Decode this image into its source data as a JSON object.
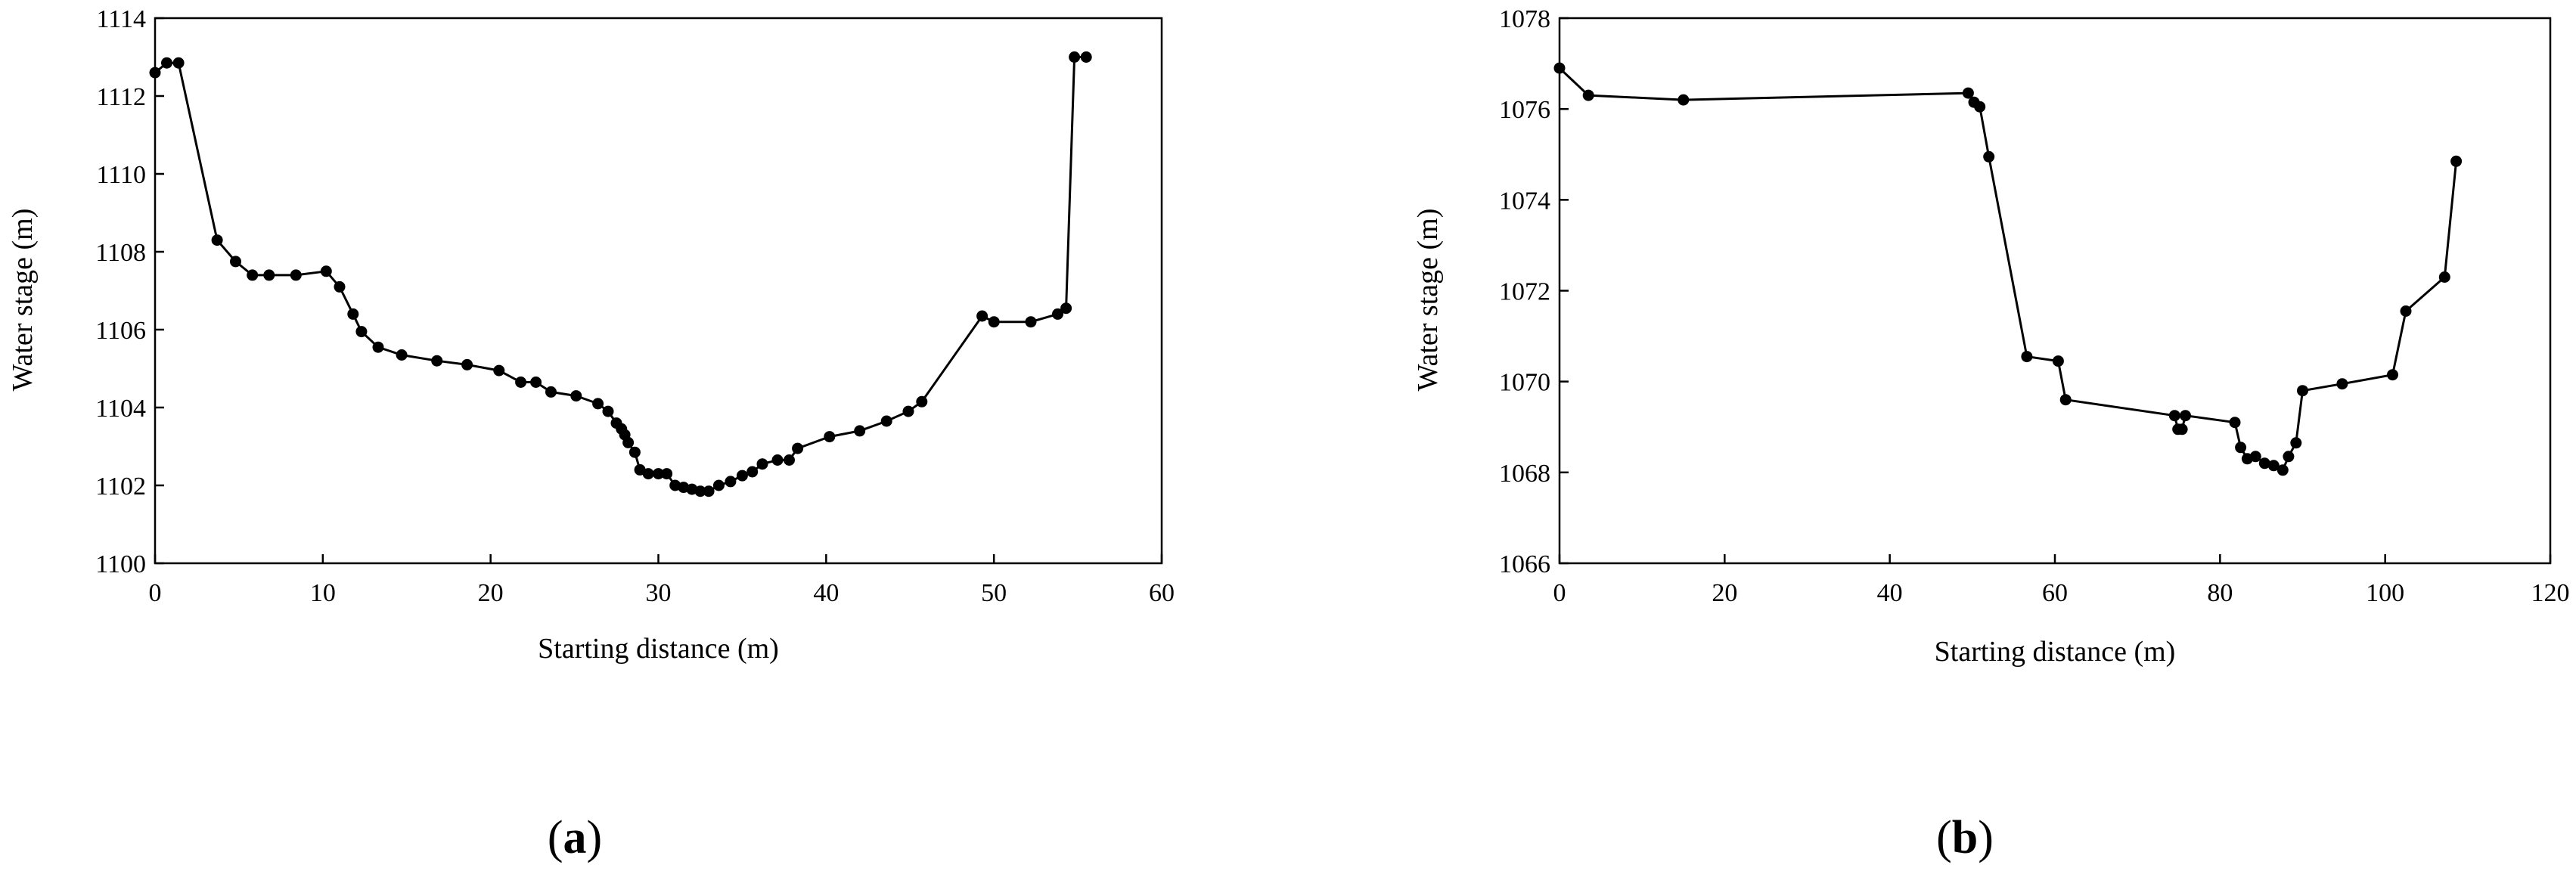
{
  "chart_data": [
    {
      "type": "line",
      "panel_label": {
        "open": "(",
        "letter": "a",
        "close": ")"
      },
      "title": "",
      "xlabel": "Starting distance (m)",
      "ylabel": "Water stage (m)",
      "xlim": [
        0,
        60
      ],
      "ylim": [
        1100,
        1114
      ],
      "xticks": [
        0,
        10,
        20,
        30,
        40,
        50,
        60
      ],
      "yticks": [
        1100,
        1102,
        1104,
        1106,
        1108,
        1110,
        1112,
        1114
      ],
      "grid": false,
      "legend": "none",
      "marker": "filled circle",
      "color": "#000000",
      "x": [
        0,
        0.7,
        1.4,
        3.7,
        4.8,
        5.8,
        6.8,
        8.4,
        10.2,
        11.0,
        11.8,
        12.3,
        13.3,
        14.7,
        16.8,
        18.6,
        20.5,
        21.8,
        22.7,
        23.6,
        25.1,
        26.4,
        27.0,
        27.5,
        27.8,
        28.0,
        28.2,
        28.6,
        28.9,
        29.4,
        30.0,
        30.5,
        31.0,
        31.5,
        32.0,
        32.5,
        33.0,
        33.6,
        34.3,
        35.0,
        35.6,
        36.2,
        37.1,
        37.8,
        38.3,
        40.2,
        42.0,
        43.6,
        44.9,
        45.7,
        49.3,
        50.0,
        52.2,
        53.8,
        54.3,
        54.8,
        55.5
      ],
      "y": [
        1112.6,
        1112.85,
        1112.85,
        1108.3,
        1107.75,
        1107.4,
        1107.4,
        1107.4,
        1107.5,
        1107.1,
        1106.4,
        1105.95,
        1105.55,
        1105.35,
        1105.2,
        1105.1,
        1104.95,
        1104.65,
        1104.65,
        1104.4,
        1104.3,
        1104.1,
        1103.9,
        1103.6,
        1103.45,
        1103.3,
        1103.1,
        1102.85,
        1102.4,
        1102.3,
        1102.3,
        1102.3,
        1102.0,
        1101.95,
        1101.9,
        1101.85,
        1101.85,
        1102.0,
        1102.1,
        1102.25,
        1102.35,
        1102.55,
        1102.65,
        1102.65,
        1102.95,
        1103.25,
        1103.4,
        1103.65,
        1103.9,
        1104.15,
        1106.35,
        1106.2,
        1106.2,
        1106.4,
        1106.55,
        1113.0,
        1113.0
      ]
    },
    {
      "type": "line",
      "panel_label": {
        "open": "(",
        "letter": "b",
        "close": ")"
      },
      "title": "",
      "xlabel": "Starting distance (m)",
      "ylabel": "Water stage (m)",
      "xlim": [
        0,
        120
      ],
      "ylim": [
        1066,
        1078
      ],
      "xticks": [
        0,
        20,
        40,
        60,
        80,
        100,
        120
      ],
      "yticks": [
        1066,
        1068,
        1070,
        1072,
        1074,
        1076,
        1078
      ],
      "grid": false,
      "legend": "none",
      "marker": "filled circle",
      "color": "#000000",
      "x": [
        0,
        3.5,
        15,
        49.5,
        50.2,
        50.9,
        52.0,
        56.6,
        60.4,
        61.3,
        74.5,
        74.9,
        75.4,
        75.8,
        81.8,
        82.5,
        83.3,
        84.3,
        85.4,
        86.5,
        87.6,
        88.3,
        89.2,
        90.0,
        94.8,
        100.9,
        102.5,
        107.2,
        108.6
      ],
      "y": [
        1076.9,
        1076.3,
        1076.2,
        1076.35,
        1076.15,
        1076.05,
        1074.95,
        1070.55,
        1070.45,
        1069.6,
        1069.25,
        1068.95,
        1068.95,
        1069.25,
        1069.1,
        1068.55,
        1068.3,
        1068.35,
        1068.2,
        1068.15,
        1068.05,
        1068.35,
        1068.65,
        1069.8,
        1069.95,
        1070.15,
        1071.55,
        1072.3,
        1074.85
      ]
    }
  ]
}
